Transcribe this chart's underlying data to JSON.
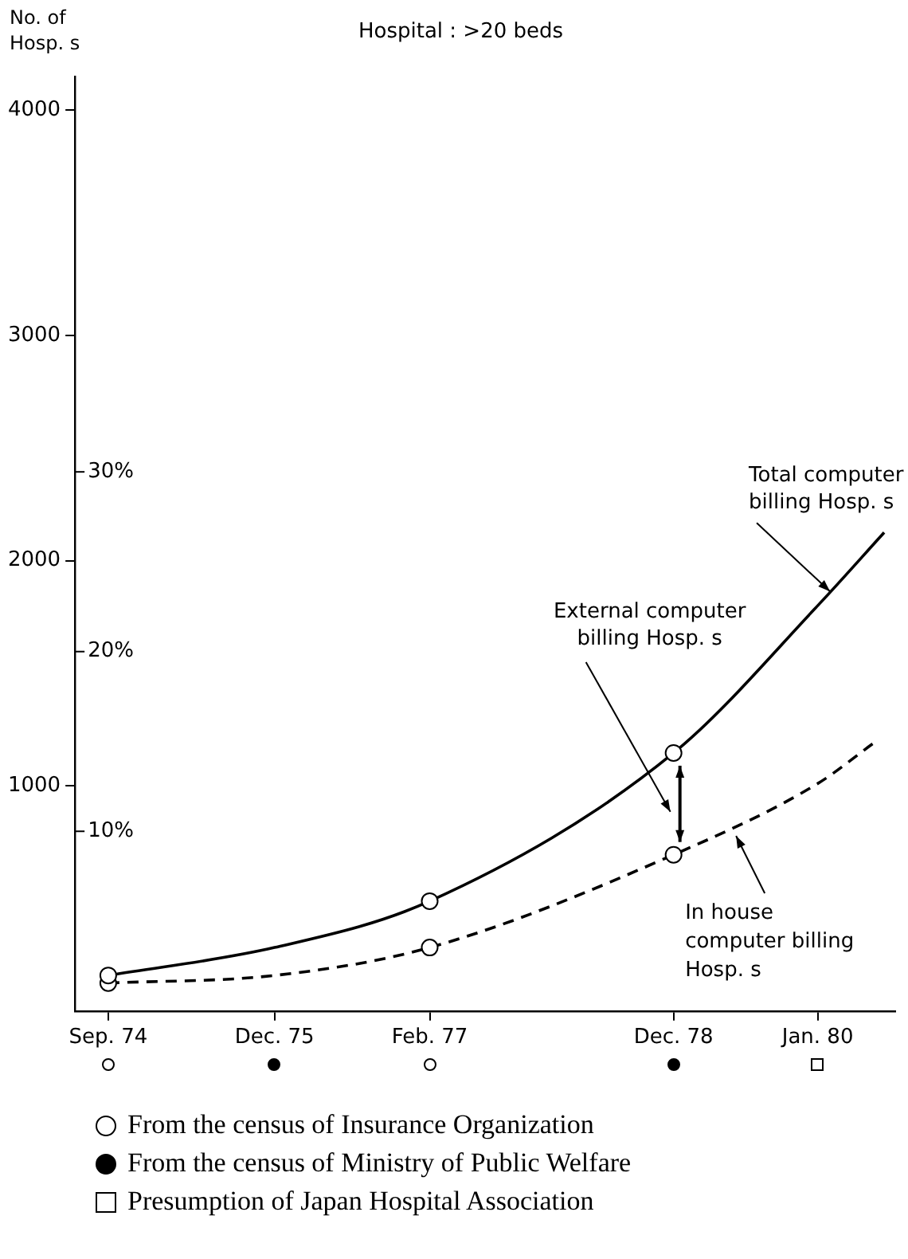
{
  "chart_data": {
    "type": "line",
    "title": "Hospital : >20 beds",
    "ylabel": "No. of Hosp. s",
    "xlim": [
      "1974-06",
      "1980-08"
    ],
    "xticks": [
      {
        "value": "1974-09",
        "label": "Sep. 74"
      },
      {
        "value": "1975-12",
        "label": "Dec. 75"
      },
      {
        "value": "1977-02",
        "label": "Feb. 77"
      },
      {
        "value": "1978-12",
        "label": "Dec. 78"
      },
      {
        "value": "1980-01",
        "label": "Jan. 80"
      }
    ],
    "ylim": [
      0,
      4150
    ],
    "yticks": [
      1000,
      2000,
      3000,
      4000
    ],
    "y2lim": [
      0,
      52
    ],
    "y2ticks": [
      {
        "value": 10,
        "label": "10%"
      },
      {
        "value": 20,
        "label": "20%"
      },
      {
        "value": 30,
        "label": "30%"
      }
    ],
    "series": [
      {
        "type": "line",
        "name": "Total computer billing Hosp. s",
        "color": "#000000",
        "line_style": "solid",
        "marker": "none",
        "x": [
          "1974-09",
          "1975-12",
          "1977-02",
          "1978-12",
          "1980-01",
          "1980-07"
        ],
        "values": [
          158,
          282,
          488,
          1146,
          1800,
          2125
        ]
      },
      {
        "type": "line",
        "name": "In house computer billing Hosp. s",
        "color": "#000000",
        "line_style": "dashed",
        "marker": "none",
        "x": [
          "1974-09",
          "1975-12",
          "1977-02",
          "1978-12",
          "1980-01",
          "1980-06"
        ],
        "values": [
          124,
          158,
          282,
          694,
          1010,
          1188
        ]
      },
      {
        "type": "scatter",
        "color": "#000000",
        "marker": "circle",
        "x": [
          "1974-09",
          "1977-02",
          "1978-12"
        ],
        "values": [
          158,
          488,
          1146
        ]
      },
      {
        "type": "scatter",
        "color": "#000000",
        "marker": "circle",
        "x": [
          "1974-09",
          "1977-02",
          "1978-12"
        ],
        "values": [
          124,
          282,
          694
        ]
      }
    ],
    "annotations": [
      "External computer billing Hosp. s",
      "From the census of Insurance Organization",
      "From the census of Ministry of Public Welfare",
      "Presumption of Japan Hospital Association"
    ],
    "grid": false,
    "legend": false
  }
}
